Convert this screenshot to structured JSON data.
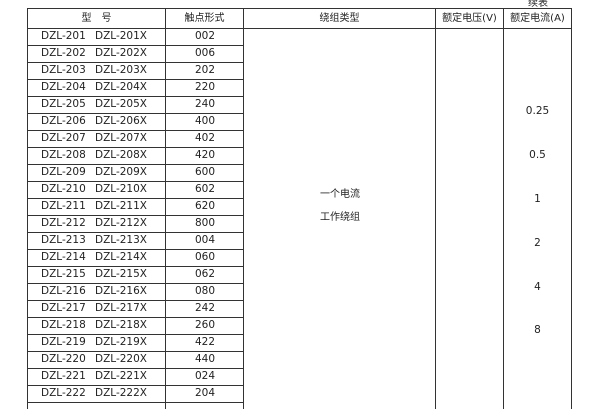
{
  "continued_label": "续表",
  "headers": [
    "型　号",
    "触点形式",
    "绕组类型",
    "额定电压(V)",
    "额定电流(A)"
  ],
  "rows": [
    [
      "DZL-201",
      "DZL-201X",
      "002"
    ],
    [
      "DZL-202",
      "DZL-202X",
      "006"
    ],
    [
      "DZL-203",
      "DZL-203X",
      "202"
    ],
    [
      "DZL-204",
      "DZL-204X",
      "220"
    ],
    [
      "DZL-205",
      "DZL-205X",
      "240"
    ],
    [
      "DZL-206",
      "DZL-206X",
      "400"
    ],
    [
      "DZL-207",
      "DZL-207X",
      "402"
    ],
    [
      "DZL-208",
      "DZL-208X",
      "420"
    ],
    [
      "DZL-209",
      "DZL-209X",
      "600"
    ],
    [
      "DZL-210",
      "DZL-210X",
      "602"
    ],
    [
      "DZL-211",
      "DZL-211X",
      "620"
    ],
    [
      "DZL-212",
      "DZL-212X",
      "800"
    ],
    [
      "DZL-213",
      "DZL-213X",
      "004"
    ],
    [
      "DZL-214",
      "DZL-214X",
      "060"
    ],
    [
      "DZL-215",
      "DZL-215X",
      "062"
    ],
    [
      "DZL-216",
      "DZL-216X",
      "080"
    ],
    [
      "DZL-217",
      "DZL-217X",
      "242"
    ],
    [
      "DZL-218",
      "DZL-218X",
      "260"
    ],
    [
      "DZL-219",
      "DZL-219X",
      "422"
    ],
    [
      "DZL-220",
      "DZL-220X",
      "440"
    ],
    [
      "DZL-221",
      "DZL-221X",
      "024"
    ],
    [
      "DZL-222",
      "DZL-222X",
      "204"
    ]
  ],
  "winding_type": [
    "一个电流",
    "工作绕组"
  ],
  "rated_voltage": "",
  "rated_currents": [
    "0.25",
    "0.5",
    "1",
    "2",
    "4",
    "8"
  ]
}
